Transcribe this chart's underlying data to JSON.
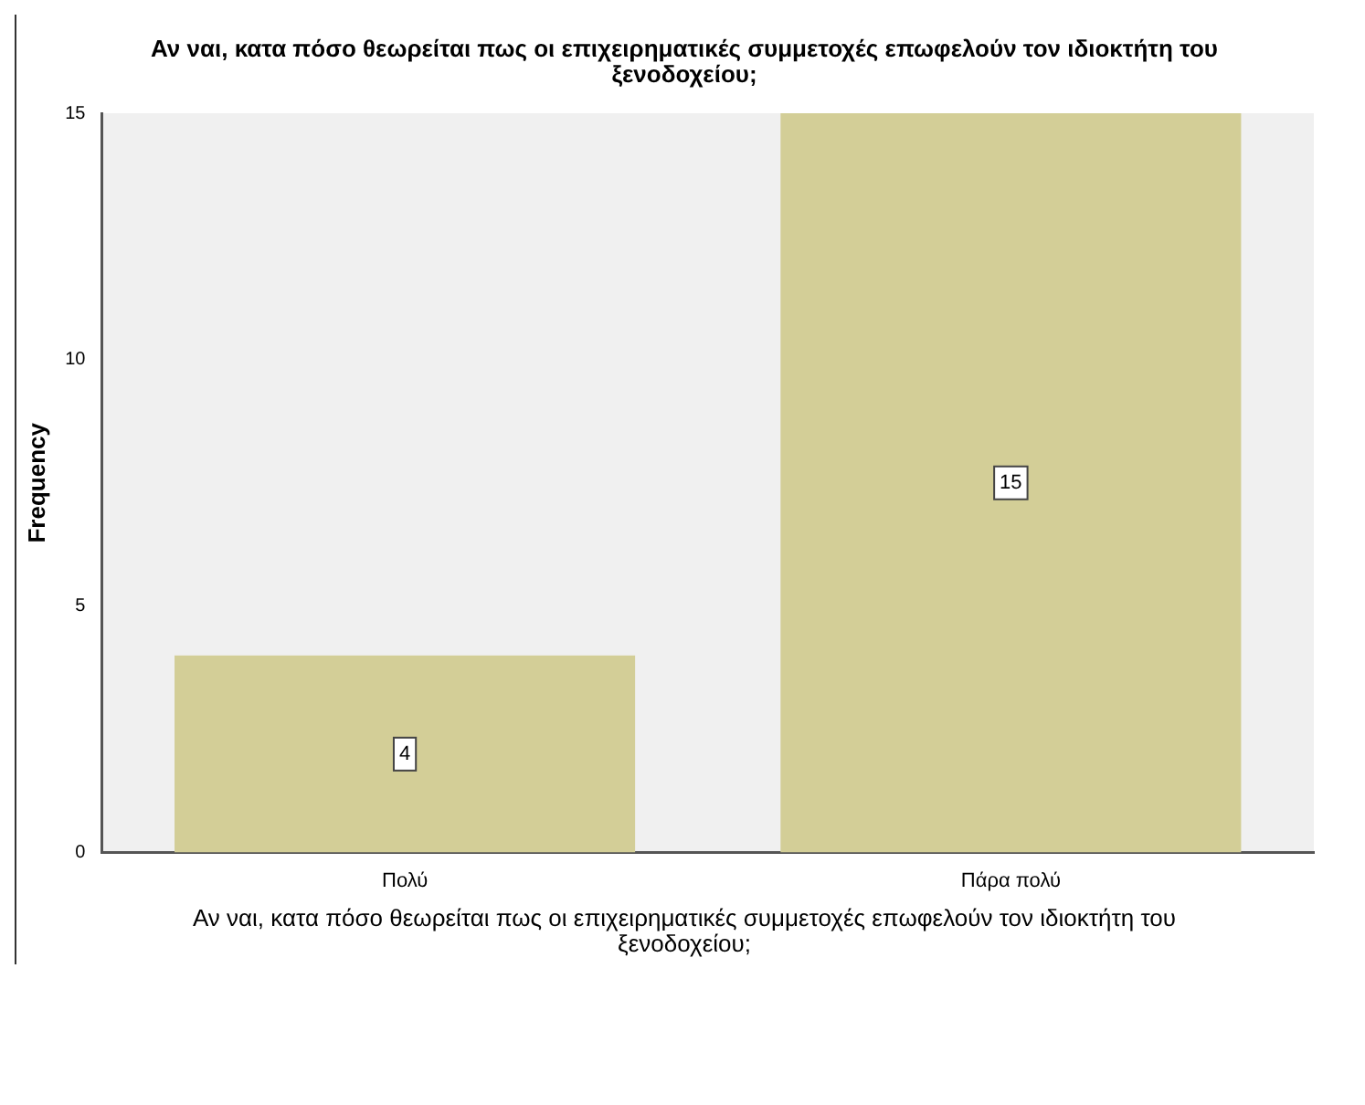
{
  "chart_data": {
    "type": "bar",
    "title": "Αν ναι, κατα πόσο θεωρείται πως οι επιχειρηματικές συμμετοχές επωφελούν τον ιδιοκτήτη του ξενοδοχείου;",
    "xlabel": "Αν ναι, κατα πόσο θεωρείται πως οι επιχειρηματικές συμμετοχές επωφελούν τον ιδιοκτήτη του ξενοδοχείου;",
    "ylabel": "Frequency",
    "categories": [
      "Πολύ",
      "Πάρα πολύ"
    ],
    "values": [
      4,
      15
    ],
    "color": "#d3ce97",
    "ylim": [
      0,
      15
    ],
    "yticks": [
      0,
      5,
      10,
      15
    ],
    "grid": false,
    "data_labels": true
  }
}
